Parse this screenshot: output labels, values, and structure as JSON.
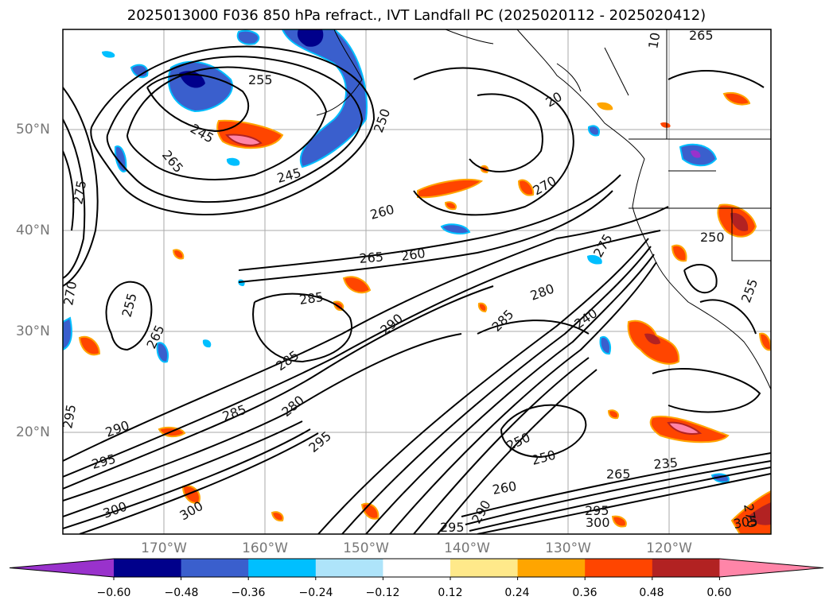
{
  "title": "2025013000 F036 850 hPa refract., IVT Landfall PC (2025020112 - 2025020412)",
  "map": {
    "lat_labels": [
      "50°N",
      "40°N",
      "30°N",
      "20°N"
    ],
    "lon_labels": [
      "170°W",
      "160°W",
      "150°W",
      "140°W",
      "130°W",
      "120°W"
    ]
  },
  "colorbar": {
    "ticks": [
      "−0.60",
      "−0.48",
      "−0.36",
      "−0.24",
      "−0.12",
      "0.12",
      "0.24",
      "0.36",
      "0.48",
      "0.60"
    ],
    "colors": [
      "#9932cc",
      "#00008b",
      "#3a5fcd",
      "#00bfff",
      "#aee4fa",
      "#ffffff",
      "#ffe98a",
      "#ffa500",
      "#ff4500",
      "#b22222",
      "#ff85a8"
    ],
    "extend": "both"
  },
  "contour_labels": [
    "265",
    "255",
    "245",
    "265",
    "245",
    "250",
    "260",
    "270",
    "265",
    "260",
    "285",
    "290",
    "285",
    "280",
    "275",
    "240",
    "285",
    "280",
    "295",
    "285",
    "290",
    "300",
    "295",
    "250",
    "250",
    "235",
    "265",
    "260",
    "295",
    "300",
    "290",
    "295",
    "305",
    "255",
    "265",
    "250",
    "255",
    "270",
    "10",
    "20",
    "275",
    "295",
    "300",
    "270"
  ]
}
